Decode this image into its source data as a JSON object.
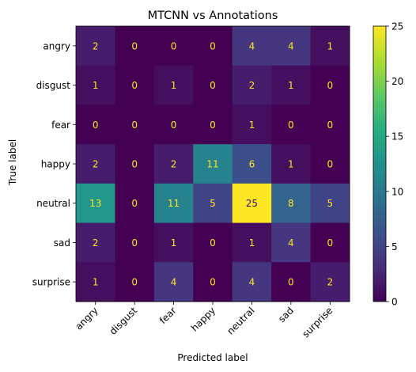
{
  "chart_data": {
    "type": "heatmap",
    "title": "MTCNN vs Annotations",
    "xlabel": "Predicted label",
    "ylabel": "True label",
    "x_categories": [
      "angry",
      "disgust",
      "fear",
      "happy",
      "neutral",
      "sad",
      "surprise"
    ],
    "y_categories": [
      "angry",
      "disgust",
      "fear",
      "happy",
      "neutral",
      "sad",
      "surprise"
    ],
    "values": [
      [
        2,
        0,
        0,
        0,
        4,
        4,
        1
      ],
      [
        1,
        0,
        1,
        0,
        2,
        1,
        0
      ],
      [
        0,
        0,
        0,
        0,
        1,
        0,
        0
      ],
      [
        2,
        0,
        2,
        11,
        6,
        1,
        0
      ],
      [
        13,
        0,
        11,
        5,
        25,
        8,
        5
      ],
      [
        2,
        0,
        1,
        0,
        1,
        4,
        0
      ],
      [
        1,
        0,
        4,
        0,
        4,
        0,
        2
      ]
    ],
    "colorbar": {
      "range": [
        0,
        25
      ],
      "ticks": [
        "0",
        "5",
        "10",
        "15",
        "20",
        "25"
      ],
      "colormap": "viridis"
    },
    "grid": false
  }
}
